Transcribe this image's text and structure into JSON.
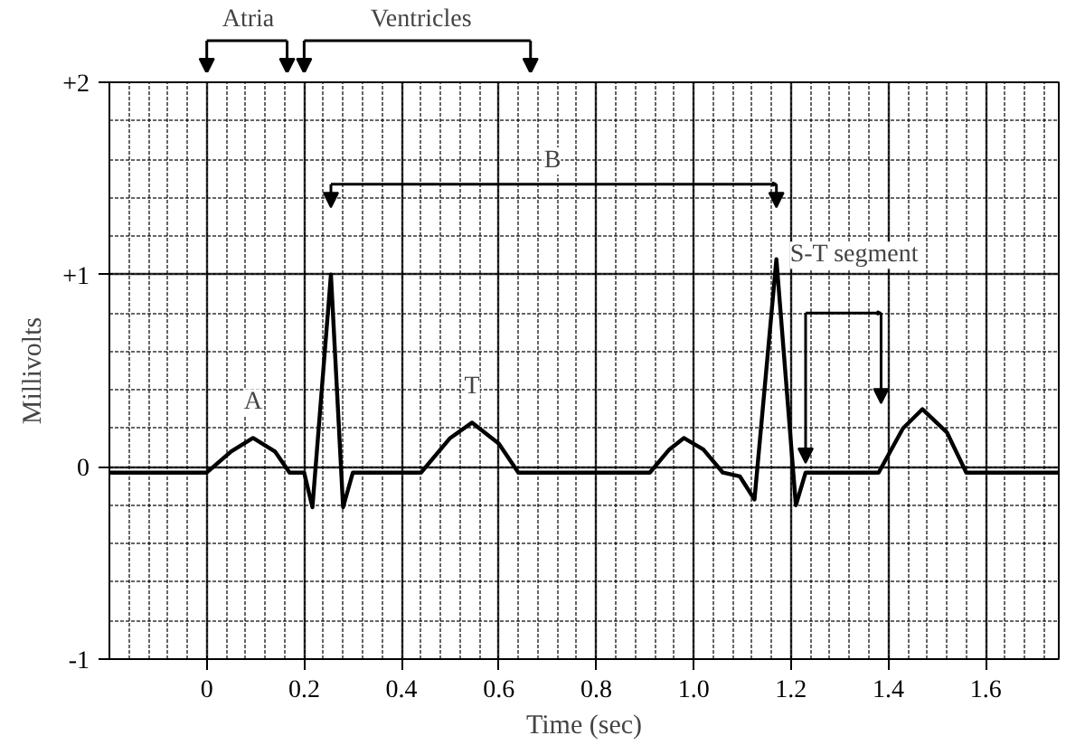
{
  "chart_data": {
    "type": "line",
    "xlabel": "Time (sec)",
    "ylabel": "Millivolts",
    "x": [
      -0.2,
      0.0,
      0.05,
      0.095,
      0.14,
      0.17,
      0.2,
      0.217,
      0.255,
      0.28,
      0.3,
      0.44,
      0.5,
      0.545,
      0.6,
      0.64,
      0.91,
      0.95,
      0.98,
      1.02,
      1.06,
      1.095,
      1.125,
      1.17,
      1.21,
      1.23,
      1.38,
      1.43,
      1.47,
      1.52,
      1.56,
      1.75
    ],
    "series": [
      {
        "color": "#000000",
        "values": [
          -0.03,
          -0.03,
          0.08,
          0.15,
          0.08,
          -0.03,
          -0.03,
          -0.21,
          1.0,
          -0.21,
          -0.03,
          -0.03,
          0.15,
          0.23,
          0.12,
          -0.03,
          -0.03,
          0.09,
          0.15,
          0.09,
          -0.03,
          -0.05,
          -0.17,
          1.08,
          -0.2,
          -0.03,
          -0.03,
          0.2,
          0.3,
          0.18,
          -0.03,
          -0.03
        ]
      }
    ],
    "xlim": [
      -0.2,
      1.75
    ],
    "ylim": [
      -1,
      2
    ],
    "xticks": [
      0,
      0.2,
      0.4,
      0.6,
      0.8,
      {
        "value": 1.0,
        "label": "1.0"
      },
      1.2,
      1.4,
      1.6
    ],
    "yticks": [
      -1,
      0,
      {
        "value": 1,
        "label": "+1"
      },
      {
        "value": 2,
        "label": "+2"
      }
    ],
    "grid": true,
    "line_style": "solid",
    "annotations": [
      {
        "text": "A",
        "x": 0.095,
        "y": 0.15
      },
      {
        "text": "T",
        "x": 0.545,
        "y": 0.23
      },
      "Atria",
      "Ventricles",
      "B",
      "S-T segment"
    ]
  }
}
